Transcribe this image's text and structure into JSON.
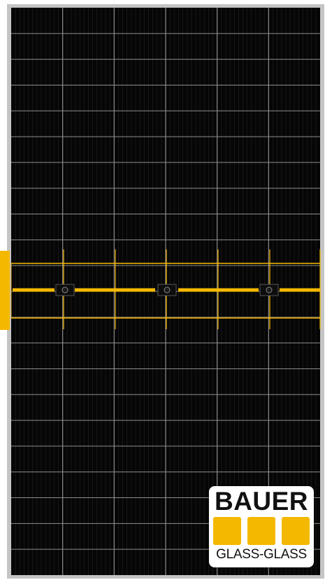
{
  "image": {
    "subject": "monocrystalline half-cut solar panel",
    "colors": {
      "frame": "#c4c4c4",
      "cell": "#060606",
      "grid_line": "#8e8e8e",
      "accent": "#f5b800"
    }
  },
  "logo": {
    "brand": "BAUER",
    "subtitle": "GLASS-GLASS",
    "color": "#f5b800"
  }
}
